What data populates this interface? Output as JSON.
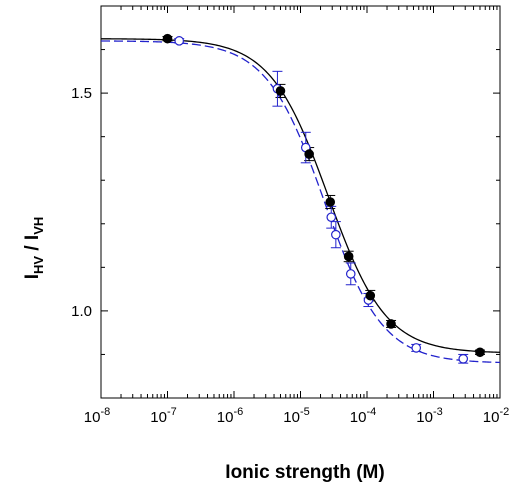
{
  "chart_data": {
    "type": "scatter",
    "title": "",
    "xlabel": "Ionic strength (M)",
    "ylabel": {
      "main": "I",
      "sub1": "HV",
      "sep": " / I",
      "sub2": "VH"
    },
    "xscale": "log",
    "xlim": [
      1e-08,
      0.01
    ],
    "ylim": [
      0.8,
      1.7
    ],
    "xticks": [
      {
        "value": 1e-08,
        "base": "10",
        "exp": "-8"
      },
      {
        "value": 1e-07,
        "base": "10",
        "exp": "-7"
      },
      {
        "value": 1e-06,
        "base": "10",
        "exp": "-6"
      },
      {
        "value": 1e-05,
        "base": "10",
        "exp": "-5"
      },
      {
        "value": 0.0001,
        "base": "10",
        "exp": "-4"
      },
      {
        "value": 0.001,
        "base": "10",
        "exp": "-3"
      },
      {
        "value": 0.01,
        "base": "10",
        "exp": "-2"
      }
    ],
    "yticks": [
      {
        "value": 1.0,
        "label": "1.0"
      },
      {
        "value": 1.5,
        "label": "1.5"
      }
    ],
    "grid": false,
    "series": [
      {
        "marker": "filled-circle",
        "color": "#000000",
        "points": [
          {
            "x": 1e-07,
            "y": 1.625,
            "err": 0.005
          },
          {
            "x": 5e-06,
            "y": 1.505,
            "err": 0.015
          },
          {
            "x": 1.35e-05,
            "y": 1.36,
            "err": 0.015
          },
          {
            "x": 2.8e-05,
            "y": 1.25,
            "err": 0.015
          },
          {
            "x": 5.3e-05,
            "y": 1.125,
            "err": 0.012
          },
          {
            "x": 0.000112,
            "y": 1.035,
            "err": 0.012
          },
          {
            "x": 0.00023,
            "y": 0.97,
            "err": 0.008
          },
          {
            "x": 0.005,
            "y": 0.905,
            "err": 0.005
          }
        ]
      },
      {
        "marker": "open-circle",
        "color": "#2222cc",
        "points": [
          {
            "x": 1.5e-07,
            "y": 1.62,
            "err": 0.005
          },
          {
            "x": 4.5e-06,
            "y": 1.51,
            "err": 0.04
          },
          {
            "x": 1.2e-05,
            "y": 1.375,
            "err": 0.035
          },
          {
            "x": 2.9e-05,
            "y": 1.215,
            "err": 0.025
          },
          {
            "x": 3.4e-05,
            "y": 1.175,
            "err": 0.03
          },
          {
            "x": 5.7e-05,
            "y": 1.085,
            "err": 0.025
          },
          {
            "x": 0.000105,
            "y": 1.025,
            "err": 0.015
          },
          {
            "x": 0.00055,
            "y": 0.915,
            "err": 0.008
          },
          {
            "x": 0.0028,
            "y": 0.89,
            "err": 0.01
          }
        ]
      }
    ],
    "fits": [
      {
        "style": "solid",
        "color": "#000000",
        "y_top": 1.625,
        "y_bottom": 0.903,
        "x_mid": 2.6e-05,
        "slope": 1.0
      },
      {
        "style": "dashed",
        "color": "#2222cc",
        "y_top": 1.62,
        "y_bottom": 0.88,
        "x_mid": 2.3e-05,
        "slope": 1.0
      }
    ]
  }
}
